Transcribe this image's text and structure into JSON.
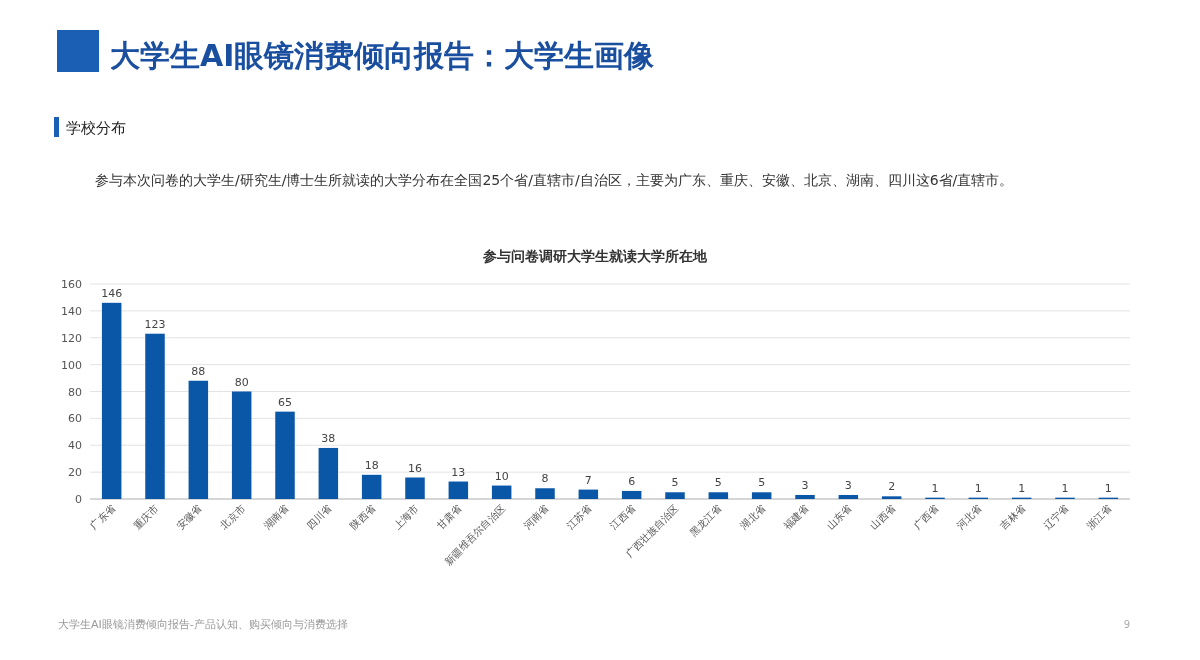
{
  "chart_data": {
    "type": "bar",
    "title": "参与问卷调研大学生就读大学所在地",
    "annotations": [
      "大学生AI眼镜消费倾向报告：大学生画像",
      "学校分布",
      "参与本次问卷的大学生/研究生/博士生所就读的大学分布在全国25个省/直辖市/自治区，主要为广东、重庆、安徽、北京、湖南、四川这6省/直辖市。",
      "大学生AI眼镜消费倾向报告-产品认知、购买倾向与消费选择",
      "9"
    ],
    "categories": [
      "广东省",
      "重庆市",
      "安徽省",
      "北京市",
      "湖南省",
      "四川省",
      "陕西省",
      "上海市",
      "甘肃省",
      "新疆维吾尔自治区",
      "河南省",
      "江苏省",
      "江西省",
      "广西壮族自治区",
      "黑龙江省",
      "湖北省",
      "福建省",
      "山东省",
      "山西省",
      "广西省",
      "河北省",
      "吉林省",
      "辽宁省",
      "浙江省"
    ],
    "values": [
      146,
      123,
      88,
      80,
      65,
      38,
      18,
      16,
      13,
      10,
      8,
      7,
      6,
      5,
      5,
      5,
      3,
      3,
      2,
      1,
      1,
      1,
      1,
      1
    ],
    "color": "#0a57a8",
    "ylim": [
      0,
      160
    ],
    "yticks": [
      0,
      20,
      40,
      60,
      80,
      100,
      120,
      140,
      160
    ],
    "grid": "y",
    "data_labels": true
  }
}
